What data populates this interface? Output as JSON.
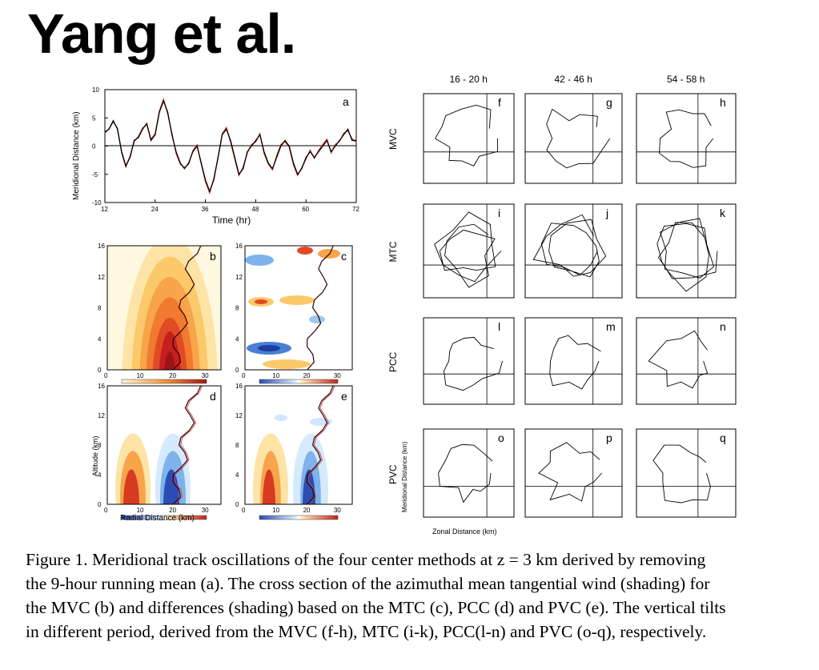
{
  "header": {
    "title": "Yang et al."
  },
  "panel_a": {
    "label": "a",
    "ylabel": "Meridional Distance (km)",
    "xlabel": "Time (hr)",
    "xticks": [
      "12",
      "24",
      "36",
      "48",
      "60",
      "72"
    ],
    "yticks": [
      "10",
      "5",
      "0",
      "-5",
      "-10"
    ],
    "chart_data": {
      "type": "line",
      "x": [
        12,
        13,
        14,
        15,
        16,
        17,
        18,
        19,
        20,
        21,
        22,
        23,
        24,
        25,
        26,
        27,
        28,
        29,
        30,
        31,
        32,
        33,
        34,
        35,
        36,
        37,
        38,
        39,
        40,
        41,
        42,
        43,
        44,
        45,
        46,
        47,
        48,
        49,
        50,
        51,
        52,
        53,
        54,
        55,
        56,
        57,
        58,
        59,
        60,
        61,
        62,
        63,
        64,
        65,
        66,
        67,
        68,
        69,
        70,
        71,
        72
      ],
      "series": [
        {
          "name": "",
          "color": "#000000",
          "values": [
            2.5,
            3,
            4.5,
            3,
            -1,
            -3.5,
            -2,
            1,
            1.5,
            3,
            4,
            1,
            2,
            6,
            8,
            6,
            2,
            -1,
            -3,
            -4,
            -3,
            -1,
            0,
            -3,
            -6,
            -8,
            -6,
            -2,
            2,
            3,
            1,
            -2,
            -5,
            -4,
            -1,
            0,
            1,
            2,
            -1,
            -3,
            -4,
            -2,
            0,
            1,
            0,
            -3,
            -5,
            -4,
            -2,
            -1,
            -2,
            -1,
            0,
            1,
            -1,
            0,
            1,
            2,
            3,
            1,
            1
          ]
        },
        {
          "name": "",
          "color": "#d93a2b",
          "values": [
            2.3,
            3.1,
            4.3,
            3.2,
            -1.2,
            -3.7,
            -1.8,
            0.8,
            1.7,
            3.2,
            3.8,
            1.2,
            2.2,
            6.2,
            8.3,
            5.7,
            2.3,
            -1.3,
            -3.2,
            -3.8,
            -3.2,
            -0.8,
            0.2,
            -3.2,
            -6.3,
            -8.3,
            -5.7,
            -2.2,
            2.2,
            3.3,
            0.7,
            -2.3,
            -5.2,
            -3.7,
            -1.2,
            0.3,
            0.7,
            2.2,
            -1.3,
            -3.2,
            -4.2,
            -1.7,
            0.3,
            0.8,
            -0.2,
            -3.3,
            -5.2,
            -3.8,
            -2.3,
            -0.7,
            -2.2,
            -0.8,
            0.3,
            1.2,
            -1.2,
            0.3,
            0.8,
            2.3,
            2.7,
            1.3,
            0.7
          ]
        }
      ],
      "xlim": [
        12,
        72
      ],
      "ylim": [
        -10,
        10
      ]
    }
  },
  "panels_bcde": {
    "altitude_label": "Altitude (km)",
    "radial_label": "Radial Distance (km)",
    "xticks": [
      "0",
      "10",
      "20",
      "30"
    ],
    "yticks": [
      "0",
      "4",
      "8",
      "12",
      "16"
    ],
    "panels": [
      {
        "label": "b",
        "type": "wind"
      },
      {
        "label": "c",
        "type": "diff"
      },
      {
        "label": "d",
        "type": "diff"
      },
      {
        "label": "e",
        "type": "diff"
      }
    ]
  },
  "grid": {
    "col_headers": [
      "16 - 20 h",
      "42 - 46 h",
      "54 - 58 h"
    ],
    "row_labels": [
      "MVC",
      "MTC",
      "PCC",
      "PVC"
    ],
    "panel_labels": [
      [
        "f",
        "g",
        "h"
      ],
      [
        "i",
        "j",
        "k"
      ],
      [
        "l",
        "m",
        "n"
      ],
      [
        "o",
        "p",
        "q"
      ]
    ],
    "side_ylabel": "Meridional Distance (km)",
    "bottom_xlabel": "Zonal Distance (km)"
  },
  "caption": {
    "lines": [
      "Figure 1. Meridional track oscillations of the four center methods at z = 3 km derived by removing",
      "the 9-hour running mean (a). The cross section of the azimuthal mean tangential wind (shading) for",
      "the MVC (b) and differences (shading) based on the MTC (c), PCC (d) and PVC (e). The vertical tilts",
      "in different period, derived from the MVC (f-h), MTC (i-k), PCC(l-n) and PVC (o-q), respectively."
    ]
  }
}
